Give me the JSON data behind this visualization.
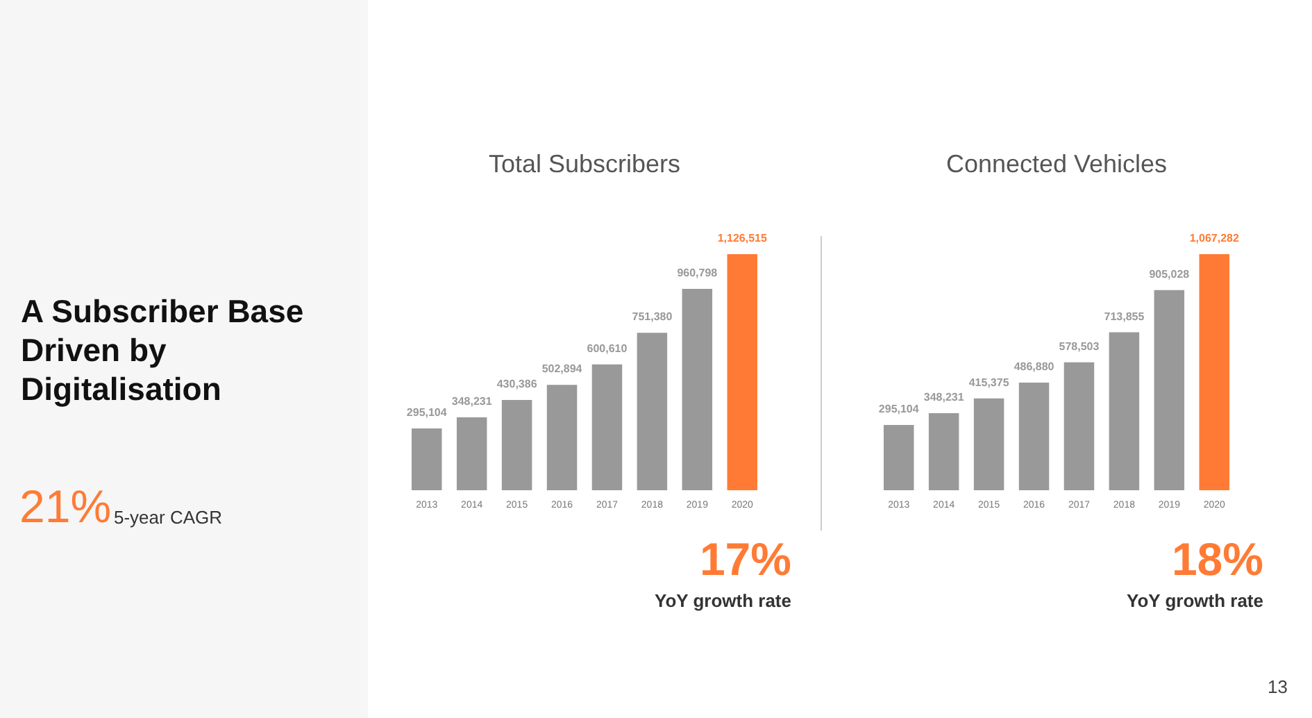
{
  "chart_data": [
    {
      "type": "other",
      "title": "A Subscriber Base Driven by Digitalisation",
      "annotations": [
        "21%",
        "5-year CAGR",
        "13"
      ]
    },
    {
      "type": "bar",
      "title": "Total Subscribers",
      "categories": [
        "2013",
        "2014",
        "2015",
        "2016",
        "2017",
        "2018",
        "2019",
        "2020"
      ],
      "values": [
        295104,
        348231,
        430386,
        502894,
        600610,
        751380,
        960798,
        1126515
      ],
      "colors": [
        "#999999",
        "#999999",
        "#999999",
        "#999999",
        "#999999",
        "#999999",
        "#999999",
        "#ff7b35"
      ],
      "value_labels": [
        "295,104",
        "348,231",
        "430,386",
        "502,894",
        "600,610",
        "751,380",
        "960,798",
        "1,126,515"
      ],
      "annotations": [
        "17%",
        "YoY growth rate"
      ]
    },
    {
      "type": "bar",
      "title": "Connected Vehicles",
      "categories": [
        "2013",
        "2014",
        "2015",
        "2016",
        "2017",
        "2018",
        "2019",
        "2020"
      ],
      "values": [
        295104,
        348231,
        415375,
        486880,
        578503,
        713855,
        905028,
        1067282
      ],
      "colors": [
        "#999999",
        "#999999",
        "#999999",
        "#999999",
        "#999999",
        "#999999",
        "#999999",
        "#ff7b35"
      ],
      "value_labels": [
        "295,104",
        "348,231",
        "415,375",
        "486,880",
        "578,503",
        "713,855",
        "905,028",
        "1,067,282"
      ],
      "annotations": [
        "18%",
        "YoY growth rate"
      ]
    }
  ]
}
